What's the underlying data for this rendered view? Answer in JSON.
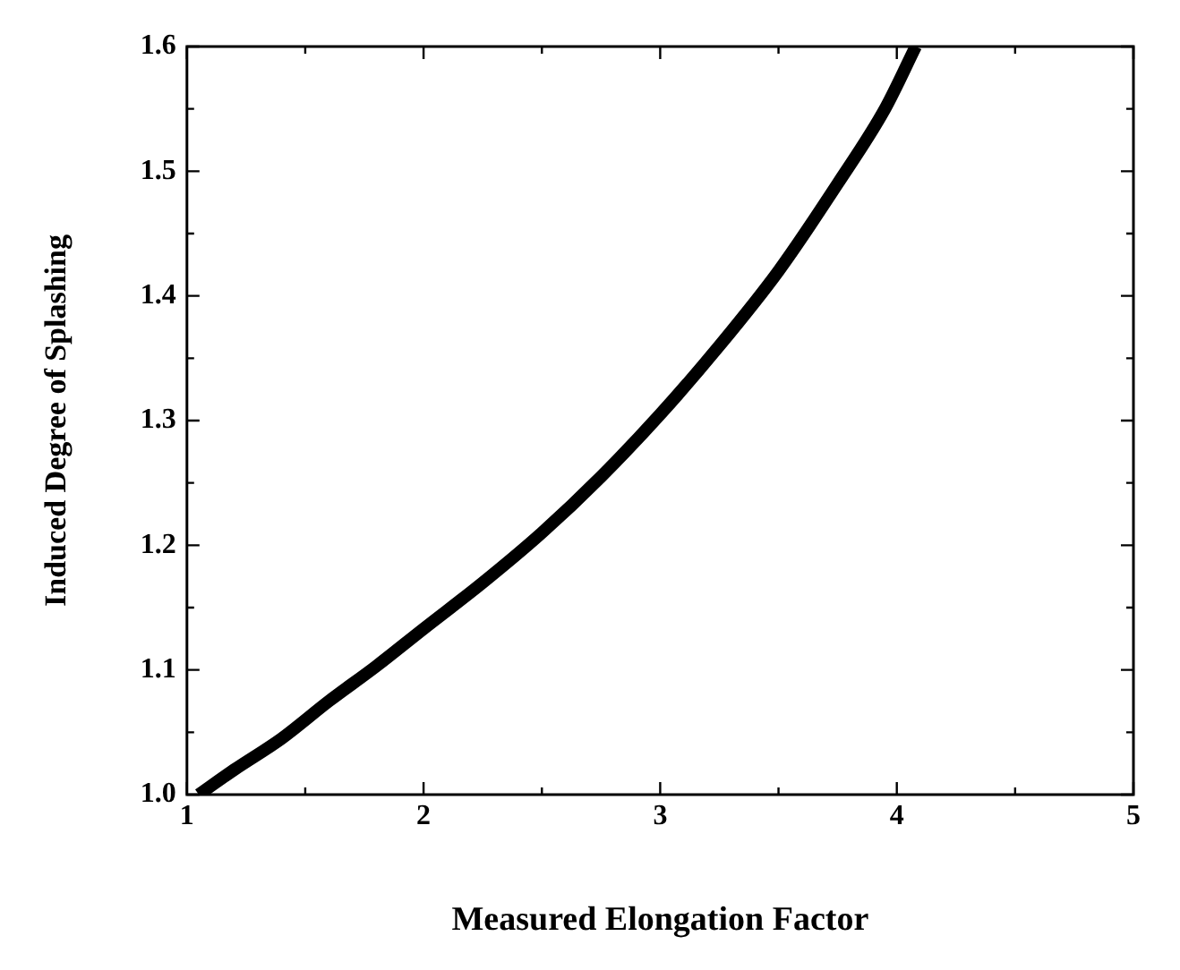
{
  "chart_data": {
    "type": "line",
    "xlabel": "Measured Elongation Factor",
    "ylabel": "Induced Degree of Splashing",
    "x": [
      1.05,
      1.2,
      1.4,
      1.6,
      1.8,
      2,
      2.25,
      2.5,
      2.75,
      3,
      3.25,
      3.5,
      3.75,
      3.95,
      4.08
    ],
    "series": [
      {
        "color": "#000000",
        "values": [
          1.0,
          1.02,
          1.045,
          1.075,
          1.103,
          1.133,
          1.17,
          1.21,
          1.255,
          1.305,
          1.36,
          1.42,
          1.49,
          1.55,
          1.6
        ]
      }
    ],
    "xlim": [
      1,
      5
    ],
    "ylim": [
      1.0,
      1.6
    ],
    "xticks": [
      1,
      {
        "value": 1.5,
        "label": null
      },
      2,
      {
        "value": 2.5,
        "label": null
      },
      3,
      {
        "value": 3.5,
        "label": null
      },
      4,
      {
        "value": 4.5,
        "label": null
      },
      5
    ],
    "yticks": [
      "1.0",
      {
        "value": 1.05,
        "label": null
      },
      1.1,
      {
        "value": 1.15,
        "label": null
      },
      1.2,
      {
        "value": 1.25,
        "label": null
      },
      1.3,
      {
        "value": 1.35,
        "label": null
      },
      1.4,
      {
        "value": 1.45,
        "label": null
      },
      1.5,
      {
        "value": 1.55,
        "label": null
      },
      1.6
    ],
    "grid": false,
    "legend": false,
    "marker": "none",
    "line_style": "solid"
  }
}
